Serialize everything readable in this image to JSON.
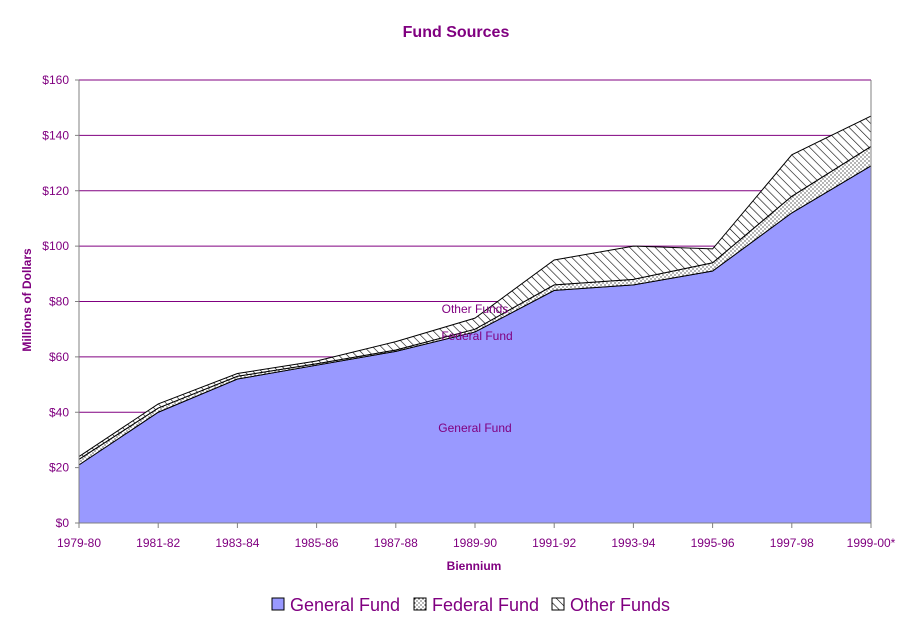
{
  "chart_data": {
    "type": "area",
    "stacked": true,
    "title": "Fund Sources",
    "xlabel": "Biennium",
    "ylabel": "Millions of Dollars",
    "categories": [
      "1979-80",
      "1981-82",
      "1983-84",
      "1985-86",
      "1987-88",
      "1989-90",
      "1991-92",
      "1993-94",
      "1995-96",
      "1997-98",
      "1999-00*"
    ],
    "ylim": [
      0,
      160
    ],
    "yticks": [
      0,
      20,
      40,
      60,
      80,
      100,
      120,
      140,
      160
    ],
    "ytick_labels": [
      "$0",
      "$20",
      "$40",
      "$60",
      "$80",
      "$100",
      "$120",
      "$140",
      "$160"
    ],
    "grid": true,
    "legend_position": "bottom",
    "series": [
      {
        "name": "General Fund",
        "values": [
          21,
          40,
          52,
          57,
          62,
          69,
          84,
          86,
          91,
          112,
          129
        ],
        "color": "#9999ff",
        "pattern": "solid"
      },
      {
        "name": "Federal Fund",
        "values": [
          2,
          1.5,
          1,
          0.5,
          0.5,
          1,
          2,
          2,
          3,
          6,
          7
        ],
        "color": "#ffffff",
        "pattern": "dots"
      },
      {
        "name": "Other Funds",
        "values": [
          1,
          1.5,
          1,
          1,
          3,
          4,
          9,
          12,
          5,
          15,
          11
        ],
        "color": "#ffffff",
        "pattern": "hatch"
      }
    ],
    "area_labels": [
      "Other Funds",
      "Federal Fund",
      "General Fund"
    ],
    "colors": {
      "text": "#800080",
      "grid": "#800080",
      "axis": "#808080"
    }
  }
}
